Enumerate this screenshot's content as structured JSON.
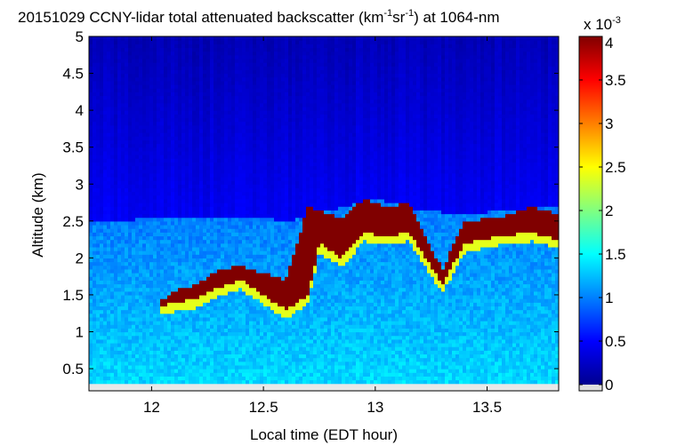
{
  "chart_data": {
    "type": "heatmap",
    "title_main": "20151029 CCNY-lidar total attenuated backscatter (km",
    "title_sup1": "-1",
    "title_mid": "sr",
    "title_sup2": "-1",
    "title_end": ") at 1064-nm",
    "xlabel": "Local time (EDT hour)",
    "ylabel": "Altitude (km)",
    "xlim": [
      11.72,
      13.82
    ],
    "ylim": [
      0.2,
      5.0
    ],
    "xticks": [
      12,
      12.5,
      13,
      13.5
    ],
    "xtick_labels": [
      "12",
      "12.5",
      "13",
      "13.5"
    ],
    "yticks": [
      0.5,
      1,
      1.5,
      2,
      2.5,
      3,
      3.5,
      4,
      4.5,
      5
    ],
    "ytick_labels": [
      "0.5",
      "1",
      "1.5",
      "2",
      "2.5",
      "3",
      "3.5",
      "4",
      "4.5",
      "5"
    ],
    "colorbar": {
      "min": 0,
      "max": 4,
      "ticks": [
        0,
        0.5,
        1,
        1.5,
        2,
        2.5,
        3,
        3.5,
        4
      ],
      "tick_labels": [
        "0",
        "0.5",
        "1",
        "1.5",
        "2",
        "2.5",
        "3",
        "3.5",
        "4"
      ],
      "multiplier_base": "x 10",
      "multiplier_exp": "-3",
      "colormap": "jet"
    },
    "data_valid_min_altitude": 0.3,
    "boundary_layer_top_km": [
      [
        11.72,
        2.5
      ],
      [
        11.9,
        2.52
      ],
      [
        12.1,
        2.55
      ],
      [
        12.3,
        2.55
      ],
      [
        12.5,
        2.55
      ],
      [
        12.6,
        2.5
      ],
      [
        12.7,
        2.55
      ],
      [
        12.8,
        2.65
      ],
      [
        13.0,
        2.8
      ],
      [
        13.2,
        2.65
      ],
      [
        13.4,
        2.6
      ],
      [
        13.6,
        2.65
      ],
      [
        13.82,
        2.7
      ]
    ],
    "cloud_base_km": [
      [
        12.05,
        1.35
      ],
      [
        12.1,
        1.4
      ],
      [
        12.2,
        1.45
      ],
      [
        12.3,
        1.6
      ],
      [
        12.4,
        1.7
      ],
      [
        12.5,
        1.5
      ],
      [
        12.6,
        1.3
      ],
      [
        12.7,
        1.5
      ],
      [
        12.75,
        2.2
      ],
      [
        12.85,
        2.0
      ],
      [
        12.95,
        2.35
      ],
      [
        13.05,
        2.3
      ],
      [
        13.15,
        2.35
      ],
      [
        13.3,
        1.65
      ],
      [
        13.4,
        2.2
      ],
      [
        13.55,
        2.3
      ],
      [
        13.7,
        2.35
      ],
      [
        13.82,
        2.25
      ]
    ],
    "cloud_top_km": [
      [
        12.05,
        1.45
      ],
      [
        12.1,
        1.55
      ],
      [
        12.2,
        1.65
      ],
      [
        12.3,
        1.85
      ],
      [
        12.4,
        1.9
      ],
      [
        12.5,
        1.8
      ],
      [
        12.6,
        1.7
      ],
      [
        12.7,
        2.7
      ],
      [
        12.85,
        2.55
      ],
      [
        12.95,
        2.8
      ],
      [
        13.05,
        2.7
      ],
      [
        13.15,
        2.75
      ],
      [
        13.3,
        1.85
      ],
      [
        13.4,
        2.5
      ],
      [
        13.55,
        2.55
      ],
      [
        13.7,
        2.7
      ],
      [
        13.82,
        2.6
      ]
    ]
  }
}
